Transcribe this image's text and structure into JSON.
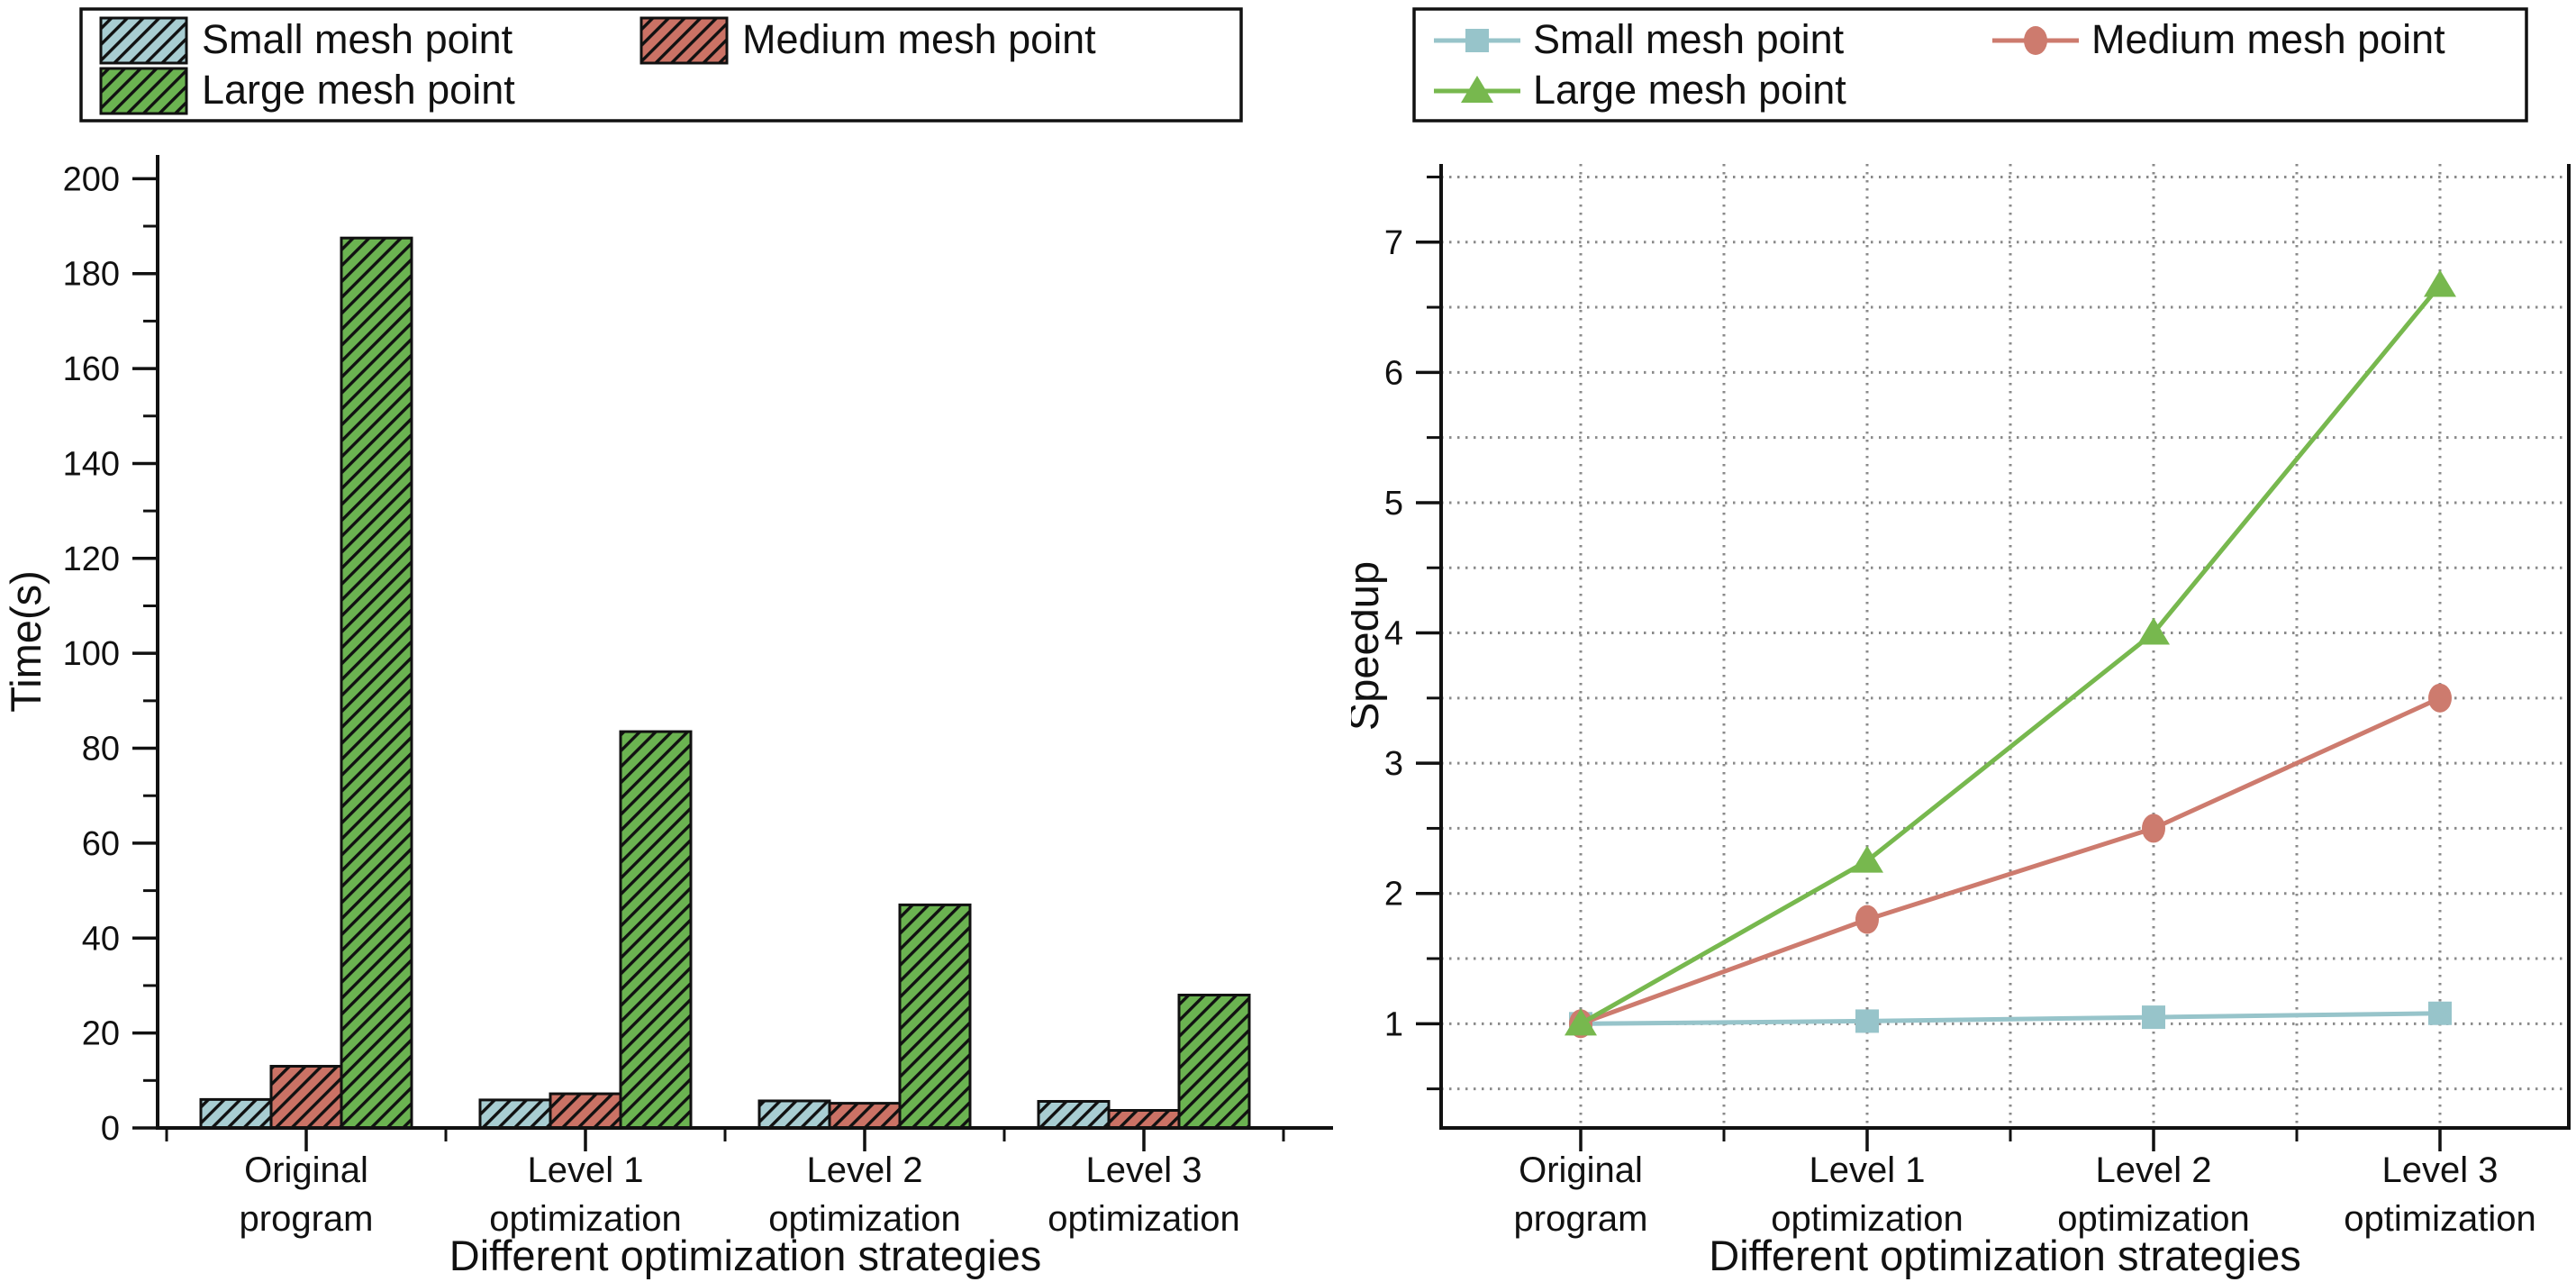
{
  "figure": {
    "background": "#ffffff",
    "text_color": "#111111",
    "axis_color": "#111111",
    "grid_color": "#8a8a8a"
  },
  "chart_data": [
    {
      "id": "time-bar-chart",
      "type": "bar",
      "title": "",
      "xlabel": "Different optimization strategies",
      "ylabel": "Time(s)",
      "categories": [
        [
          "Original",
          "program"
        ],
        [
          "Level 1",
          "optimization"
        ],
        [
          "Level 2",
          "optimization"
        ],
        [
          "Level 3",
          "optimization"
        ]
      ],
      "ylim": [
        0,
        205
      ],
      "yticks": [
        0,
        20,
        40,
        60,
        80,
        100,
        120,
        140,
        160,
        180,
        200
      ],
      "yticklabels": [
        "0",
        "20",
        "40",
        "60",
        "80",
        "100",
        "120",
        "140",
        "160",
        "180",
        "200"
      ],
      "yminorticks": [
        10,
        30,
        50,
        70,
        90,
        110,
        130,
        150,
        170,
        190
      ],
      "grid": false,
      "bar_style": "diagonal-hatch",
      "legend_position": "top-left",
      "legend_entries": [
        "Small mesh point",
        "Medium mesh point",
        "Large mesh point"
      ],
      "series": [
        {
          "name": "Small mesh point",
          "color": "#a8cdd2",
          "values": [
            6.0,
            5.9,
            5.7,
            5.6
          ]
        },
        {
          "name": "Medium mesh point",
          "color": "#cb7265",
          "values": [
            13.0,
            7.2,
            5.2,
            3.7
          ]
        },
        {
          "name": "Large mesh point",
          "color": "#6bb351",
          "values": [
            187.5,
            83.5,
            47.0,
            28.0
          ]
        }
      ]
    },
    {
      "id": "speedup-line-chart",
      "type": "line",
      "title": "",
      "xlabel": "Different optimization strategies",
      "ylabel": "Speedup",
      "categories": [
        [
          "Original",
          "program"
        ],
        [
          "Level 1",
          "optimization"
        ],
        [
          "Level 2",
          "optimization"
        ],
        [
          "Level 3",
          "optimization"
        ]
      ],
      "ylim": [
        0.2,
        7.6
      ],
      "yticks": [
        1,
        2,
        3,
        4,
        5,
        6,
        7
      ],
      "yticklabels": [
        "1",
        "2",
        "3",
        "4",
        "5",
        "6",
        "7"
      ],
      "yminorticks": [
        0.5,
        1.5,
        2.5,
        3.5,
        4.5,
        5.5,
        6.5,
        7.5
      ],
      "grid": true,
      "grid_style": "dotted",
      "legend_position": "top-left",
      "legend_entries": [
        "Small mesh point",
        "Medium mesh point",
        "Large mesh point"
      ],
      "series": [
        {
          "name": "Small mesh point",
          "color": "#97c4ca",
          "marker": "square",
          "values": [
            1.0,
            1.02,
            1.05,
            1.08
          ]
        },
        {
          "name": "Medium mesh point",
          "color": "#cd7b6e",
          "marker": "circle",
          "values": [
            1.0,
            1.8,
            2.5,
            3.5
          ]
        },
        {
          "name": "Large mesh point",
          "color": "#77b84e",
          "marker": "triangle",
          "values": [
            1.0,
            2.25,
            4.0,
            6.67
          ]
        }
      ]
    }
  ]
}
